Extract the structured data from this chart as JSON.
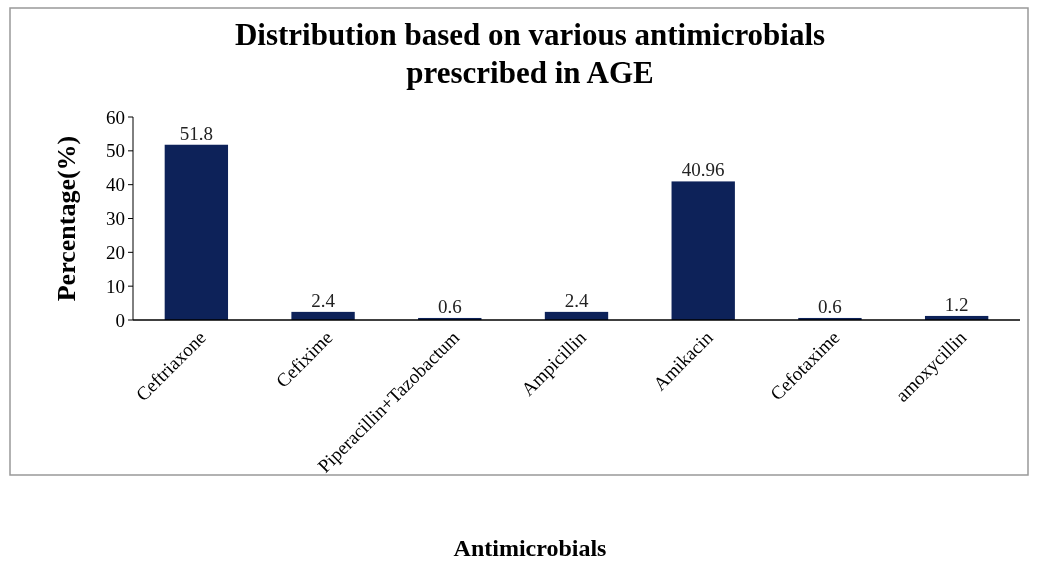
{
  "chart_data": {
    "type": "bar",
    "title": "Distribution based on various antimicrobials prescribed in AGE",
    "xlabel": "Antimicrobials",
    "ylabel": "Percentage(%)",
    "categories": [
      "Ceftriaxone",
      "Cefixime",
      "Piperacillin+Tazobactum",
      "Ampicillin",
      "Amikacin",
      "Cefotaxime",
      "amoxycillin"
    ],
    "values": [
      51.8,
      2.4,
      0.6,
      2.4,
      40.96,
      0.6,
      1.2
    ],
    "color": "#0d2259",
    "ylim": [
      0,
      60
    ],
    "yticks": [
      0,
      10,
      20,
      30,
      40,
      50,
      60
    ],
    "grid": false,
    "data_labels": true
  }
}
